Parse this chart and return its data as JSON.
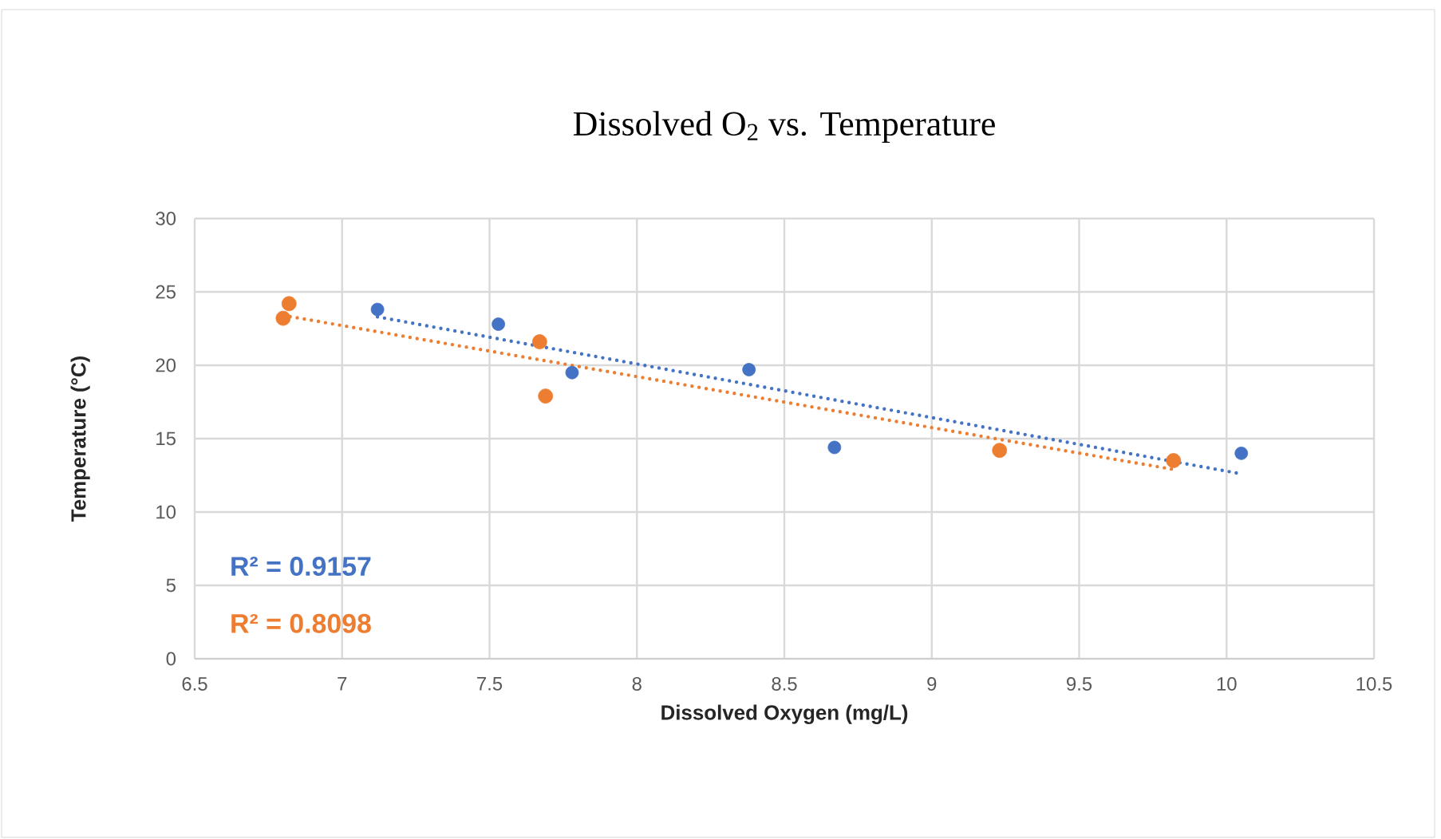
{
  "chart_data": {
    "type": "scatter",
    "title": "Dissolved O$_{2}$  vs. Temperature",
    "xlabel": "Dissolved Oxygen (mg/L)",
    "ylabel": "Temperature (°C)",
    "xlim": [
      6.5,
      10.5
    ],
    "xticks": [
      6.5,
      7,
      7.5,
      8,
      8.5,
      9,
      9.5,
      10,
      10.5
    ],
    "ylim": [
      0,
      30
    ],
    "yticks": [
      0,
      5,
      10,
      15,
      20,
      25,
      30
    ],
    "grid": true,
    "marker": "circle",
    "series": [
      {
        "color": "#4472c4",
        "x": [
          7.12,
          7.53,
          7.78,
          8.38,
          8.67,
          10.05
        ],
        "values": [
          23.8,
          22.8,
          19.5,
          19.7,
          14.4,
          14.0
        ]
      },
      {
        "color": "#ed7d31",
        "x": [
          6.8,
          6.82,
          7.67,
          7.69,
          9.23,
          9.82
        ],
        "values": [
          23.2,
          24.2,
          21.6,
          17.9,
          14.2,
          13.5
        ]
      },
      {
        "type": "line",
        "color": "#4472c4",
        "marker": "none",
        "line_style": "dotted",
        "x": [
          7.12,
          10.05
        ],
        "values": [
          23.3,
          12.6
        ]
      },
      {
        "type": "line",
        "color": "#ed7d31",
        "marker": "none",
        "line_style": "dotted",
        "x": [
          6.8,
          9.82
        ],
        "values": [
          23.4,
          12.9
        ]
      }
    ],
    "annotations": [
      "R² = 0.9157",
      "R² = 0.8098"
    ]
  }
}
